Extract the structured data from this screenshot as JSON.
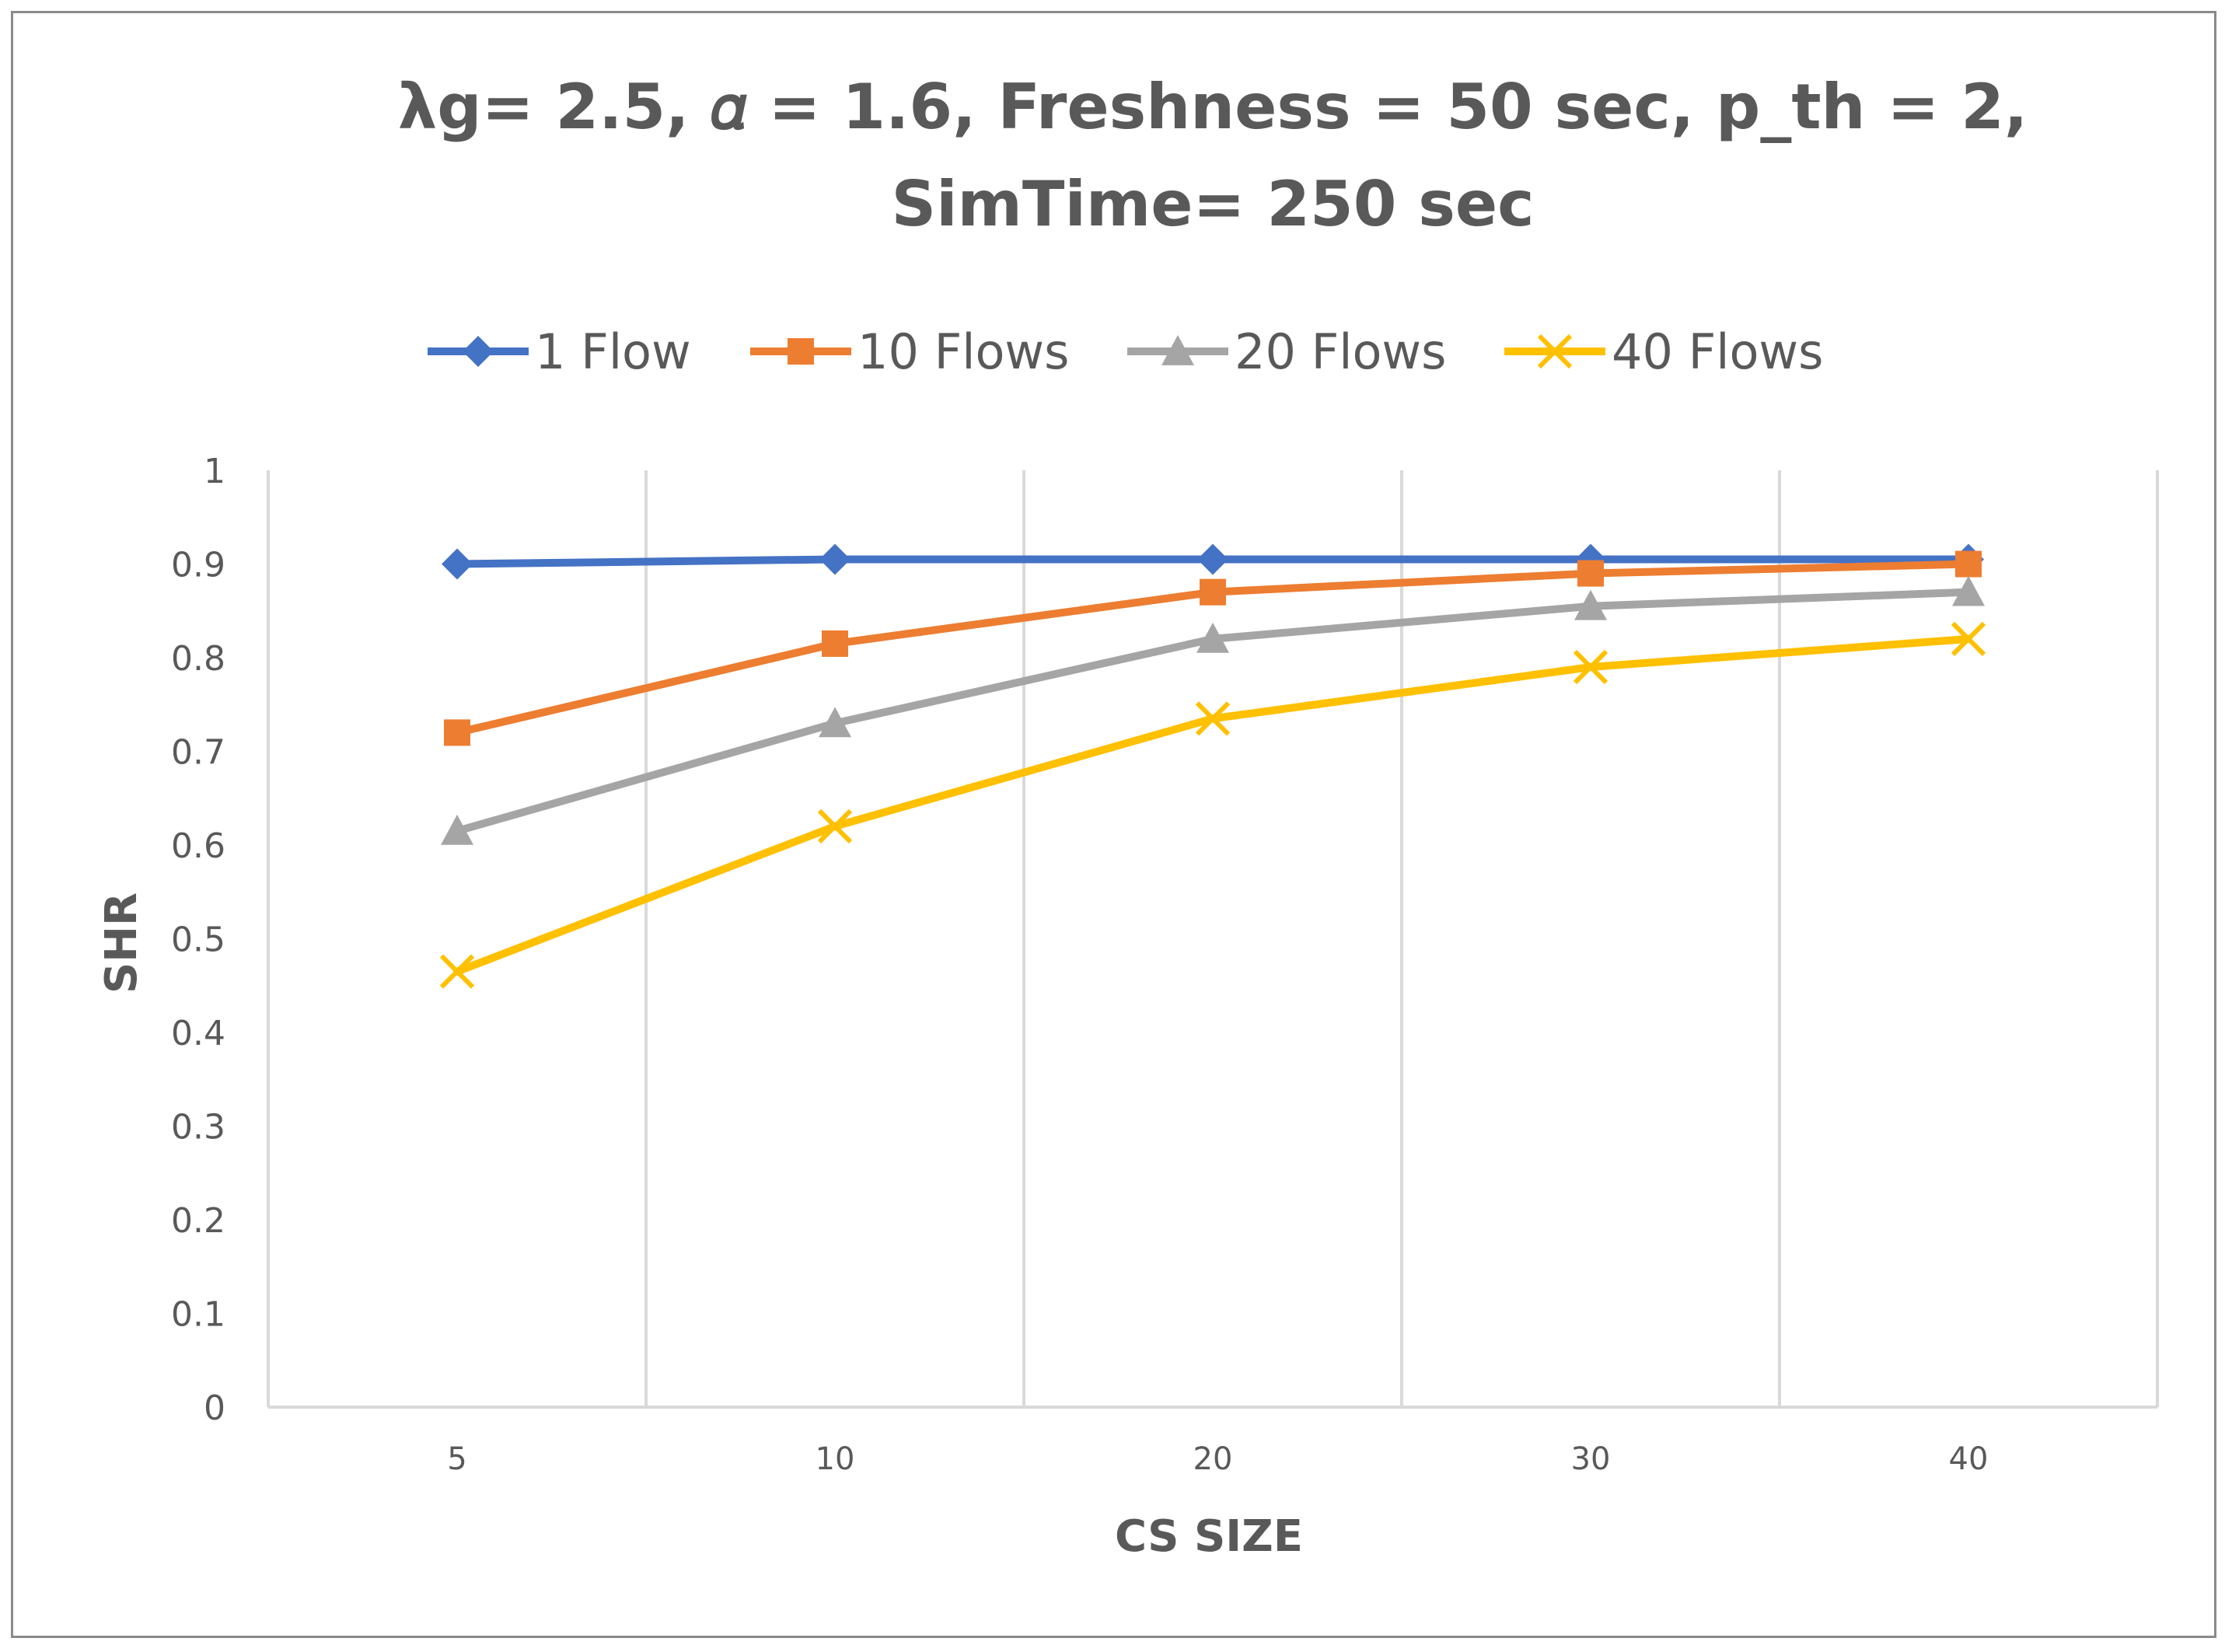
{
  "chart_data": {
    "type": "line",
    "title_lines": [
      "λg= 2.5, 𝛼 = 1.6, Freshness = 50 sec, p_th = 2,",
      "SimTime= 250 sec"
    ],
    "xlabel": "CS SIZE",
    "ylabel": "SHR",
    "categories": [
      "5",
      "10",
      "20",
      "30",
      "40"
    ],
    "ylim": [
      0,
      1
    ],
    "yticks": [
      "0",
      "0.1",
      "0.2",
      "0.3",
      "0.4",
      "0.5",
      "0.6",
      "0.7",
      "0.8",
      "0.9",
      "1"
    ],
    "grid": "vertical",
    "legend_position": "top",
    "series": [
      {
        "name": "1 Flow",
        "marker": "diamond",
        "color": "#4472C4",
        "values": [
          0.9,
          0.905,
          0.905,
          0.905,
          0.905
        ]
      },
      {
        "name": "10 Flows",
        "marker": "square",
        "color": "#ED7D31",
        "values": [
          0.72,
          0.815,
          0.87,
          0.89,
          0.9
        ]
      },
      {
        "name": "20 Flows",
        "marker": "triangle",
        "color": "#A5A5A5",
        "values": [
          0.615,
          0.73,
          0.82,
          0.855,
          0.87
        ]
      },
      {
        "name": "40 Flows",
        "marker": "x",
        "color": "#FFC000",
        "values": [
          0.465,
          0.62,
          0.735,
          0.79,
          0.82
        ]
      }
    ]
  }
}
